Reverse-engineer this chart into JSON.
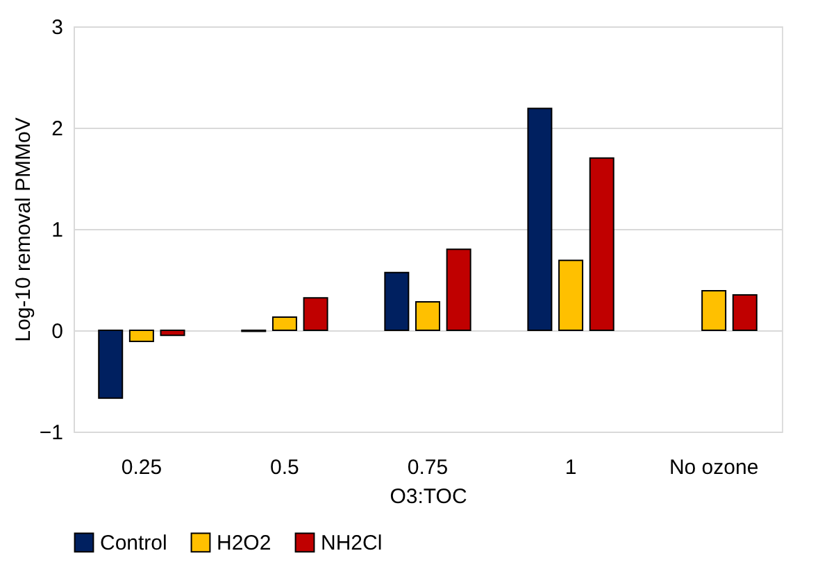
{
  "chart_data": {
    "type": "bar",
    "xlabel": "O3:TOC",
    "ylabel": "Log-10 removal PMMoV",
    "categories": [
      "0.25",
      "0.5",
      "0.75",
      "1",
      "No ozone"
    ],
    "series": [
      {
        "name": "Control",
        "color": "#002060",
        "values": [
          -0.67,
          -0.01,
          0.57,
          2.19,
          null
        ]
      },
      {
        "name": "H2O2",
        "color": "#ffc000",
        "values": [
          -0.11,
          0.13,
          0.28,
          0.69,
          0.39
        ]
      },
      {
        "name": "NH2Cl",
        "color": "#c00000",
        "values": [
          -0.05,
          0.32,
          0.8,
          1.7,
          0.35
        ]
      }
    ],
    "ylim": [
      -1,
      3
    ],
    "yticks": [
      -1,
      0,
      1,
      2,
      3
    ],
    "grid": "y",
    "legend": "bottom"
  }
}
